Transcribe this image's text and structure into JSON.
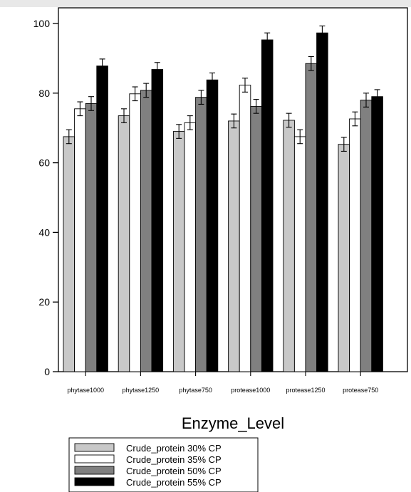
{
  "chart_data": {
    "type": "bar",
    "xlabel": "Enzyme_Level",
    "ylabel": "",
    "ylim": [
      0,
      100
    ],
    "yticks": [
      "0",
      "20",
      "40",
      "60",
      "80",
      "100"
    ],
    "categories": [
      "phytase1000",
      "phytase1250",
      "phytase750",
      "protease1000",
      "protease1250",
      "protease750"
    ],
    "series": [
      {
        "name": "Crude_protein 30% CP",
        "color": "#c8c8c8",
        "values": [
          67.5,
          73.5,
          69.0,
          72.0,
          72.2,
          65.3
        ],
        "errors": [
          2.0,
          2.0,
          2.0,
          2.0,
          2.0,
          2.0
        ]
      },
      {
        "name": "Crude_protein 35% CP",
        "color": "#ffffff",
        "values": [
          75.5,
          79.8,
          71.5,
          82.3,
          67.5,
          72.6
        ],
        "errors": [
          2.0,
          2.0,
          2.0,
          2.0,
          2.0,
          2.0
        ]
      },
      {
        "name": "Crude_protein 50% CP",
        "color": "#808080",
        "values": [
          77.0,
          80.8,
          78.8,
          76.2,
          88.5,
          78.0
        ],
        "errors": [
          2.0,
          2.0,
          2.0,
          2.0,
          2.0,
          2.0
        ]
      },
      {
        "name": "Crude_protein 55% CP",
        "color": "#000000",
        "values": [
          87.8,
          86.8,
          83.8,
          95.3,
          97.3,
          79.0
        ],
        "errors": [
          2.0,
          2.0,
          2.0,
          2.0,
          2.0,
          2.0
        ]
      }
    ],
    "legend_position": "bottom",
    "grid": false
  }
}
